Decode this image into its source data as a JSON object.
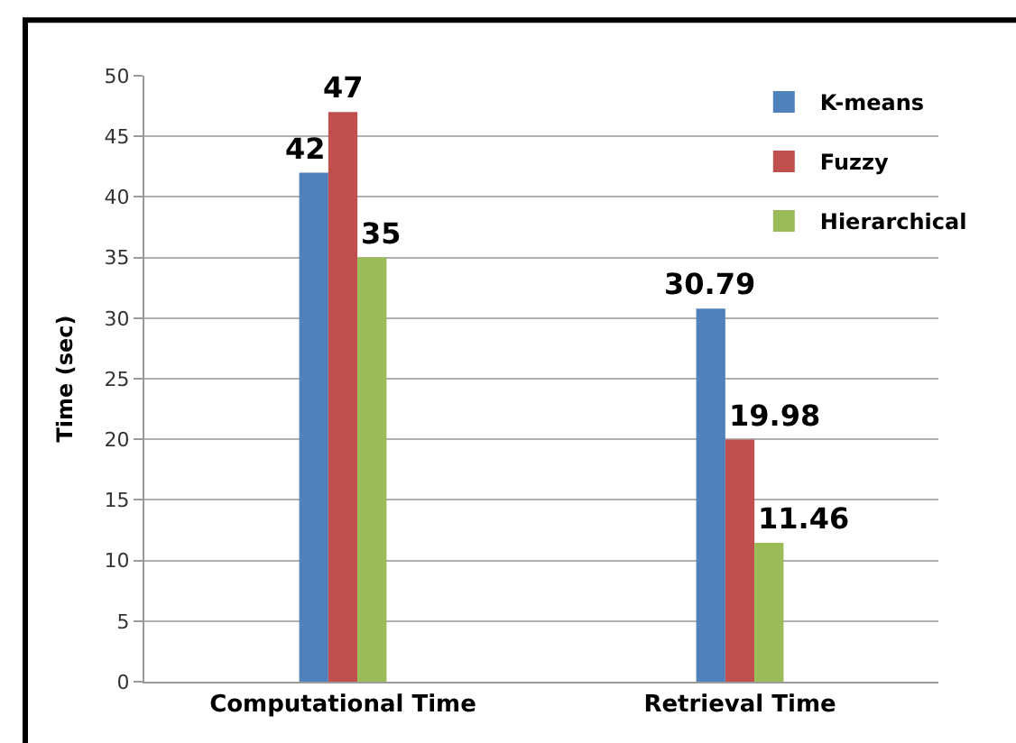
{
  "chart_data": {
    "type": "bar",
    "ylabel": "Time (sec)",
    "categories": [
      "Computational Time",
      "Retrieval Time"
    ],
    "series": [
      {
        "name": "K-means",
        "color": "#4f81bd",
        "values": [
          42,
          30.79
        ]
      },
      {
        "name": "Fuzzy",
        "color": "#c0504d",
        "values": [
          47,
          19.98
        ]
      },
      {
        "name": "Hierarchical",
        "color": "#9bbb59",
        "values": [
          35,
          11.46
        ]
      }
    ],
    "ylim": [
      0,
      50
    ],
    "yticks": [
      0,
      5,
      10,
      15,
      20,
      25,
      30,
      35,
      40,
      45,
      50
    ],
    "grid": "y",
    "legend": "top right",
    "data_labels": true
  }
}
